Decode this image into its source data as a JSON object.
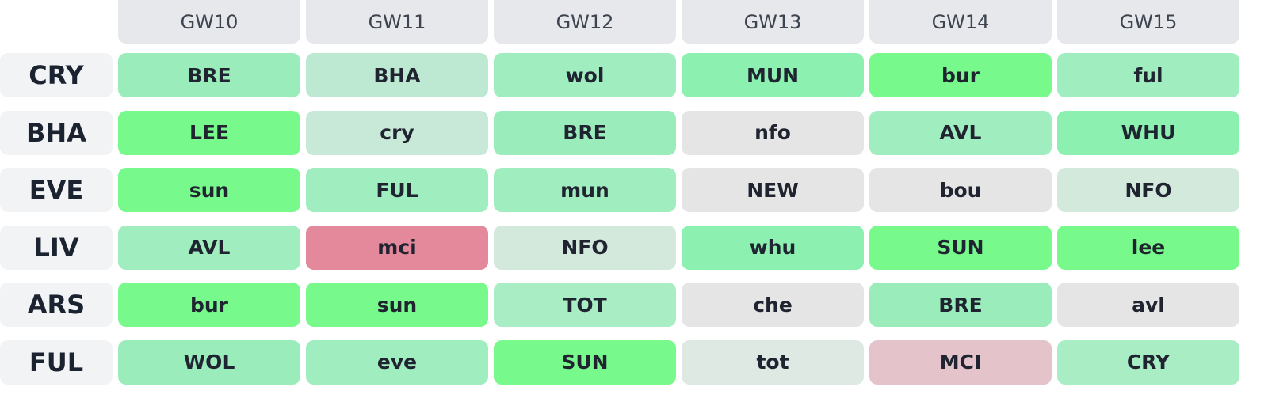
{
  "gameweeks": [
    "GW10",
    "GW11",
    "GW12",
    "GW13",
    "GW14",
    "GW15"
  ],
  "rows": [
    {
      "team": "CRY",
      "fixtures": [
        {
          "opp": "BRE",
          "color": "#9aedbb"
        },
        {
          "opp": "BHA",
          "color": "#bde9d3"
        },
        {
          "opp": "wol",
          "color": "#a0edc0"
        },
        {
          "opp": "MUN",
          "color": "#8cf0b0"
        },
        {
          "opp": "bur",
          "color": "#78f98c"
        },
        {
          "opp": "ful",
          "color": "#a0edc0"
        }
      ]
    },
    {
      "team": "BHA",
      "fixtures": [
        {
          "opp": "LEE",
          "color": "#78f98c"
        },
        {
          "opp": "cry",
          "color": "#c8e9d7"
        },
        {
          "opp": "BRE",
          "color": "#9aedbb"
        },
        {
          "opp": "nfo",
          "color": "#e5e5e5"
        },
        {
          "opp": "AVL",
          "color": "#a0edc0"
        },
        {
          "opp": "WHU",
          "color": "#8cf0b0"
        }
      ]
    },
    {
      "team": "EVE",
      "fixtures": [
        {
          "opp": "sun",
          "color": "#78f98c"
        },
        {
          "opp": "FUL",
          "color": "#a0edc0"
        },
        {
          "opp": "mun",
          "color": "#a0edc0"
        },
        {
          "opp": "NEW",
          "color": "#e5e5e5"
        },
        {
          "opp": "bou",
          "color": "#e5e5e5"
        },
        {
          "opp": "NFO",
          "color": "#d3e9dc"
        }
      ]
    },
    {
      "team": "LIV",
      "fixtures": [
        {
          "opp": "AVL",
          "color": "#a0edc0"
        },
        {
          "opp": "mci",
          "color": "#e4889c"
        },
        {
          "opp": "NFO",
          "color": "#d3e9dc"
        },
        {
          "opp": "whu",
          "color": "#8cf0b0"
        },
        {
          "opp": "SUN",
          "color": "#78f98c"
        },
        {
          "opp": "lee",
          "color": "#78f98c"
        }
      ]
    },
    {
      "team": "ARS",
      "fixtures": [
        {
          "opp": "bur",
          "color": "#78f98c"
        },
        {
          "opp": "sun",
          "color": "#78f98c"
        },
        {
          "opp": "TOT",
          "color": "#a9edc5"
        },
        {
          "opp": "che",
          "color": "#e5e5e5"
        },
        {
          "opp": "BRE",
          "color": "#9aedbb"
        },
        {
          "opp": "avl",
          "color": "#e5e5e5"
        }
      ]
    },
    {
      "team": "FUL",
      "fixtures": [
        {
          "opp": "WOL",
          "color": "#9aedbb"
        },
        {
          "opp": "eve",
          "color": "#a0edc0"
        },
        {
          "opp": "SUN",
          "color": "#78f98c"
        },
        {
          "opp": "tot",
          "color": "#dde9e2"
        },
        {
          "opp": "MCI",
          "color": "#e5c3cb"
        },
        {
          "opp": "CRY",
          "color": "#a9edc5"
        }
      ]
    }
  ]
}
